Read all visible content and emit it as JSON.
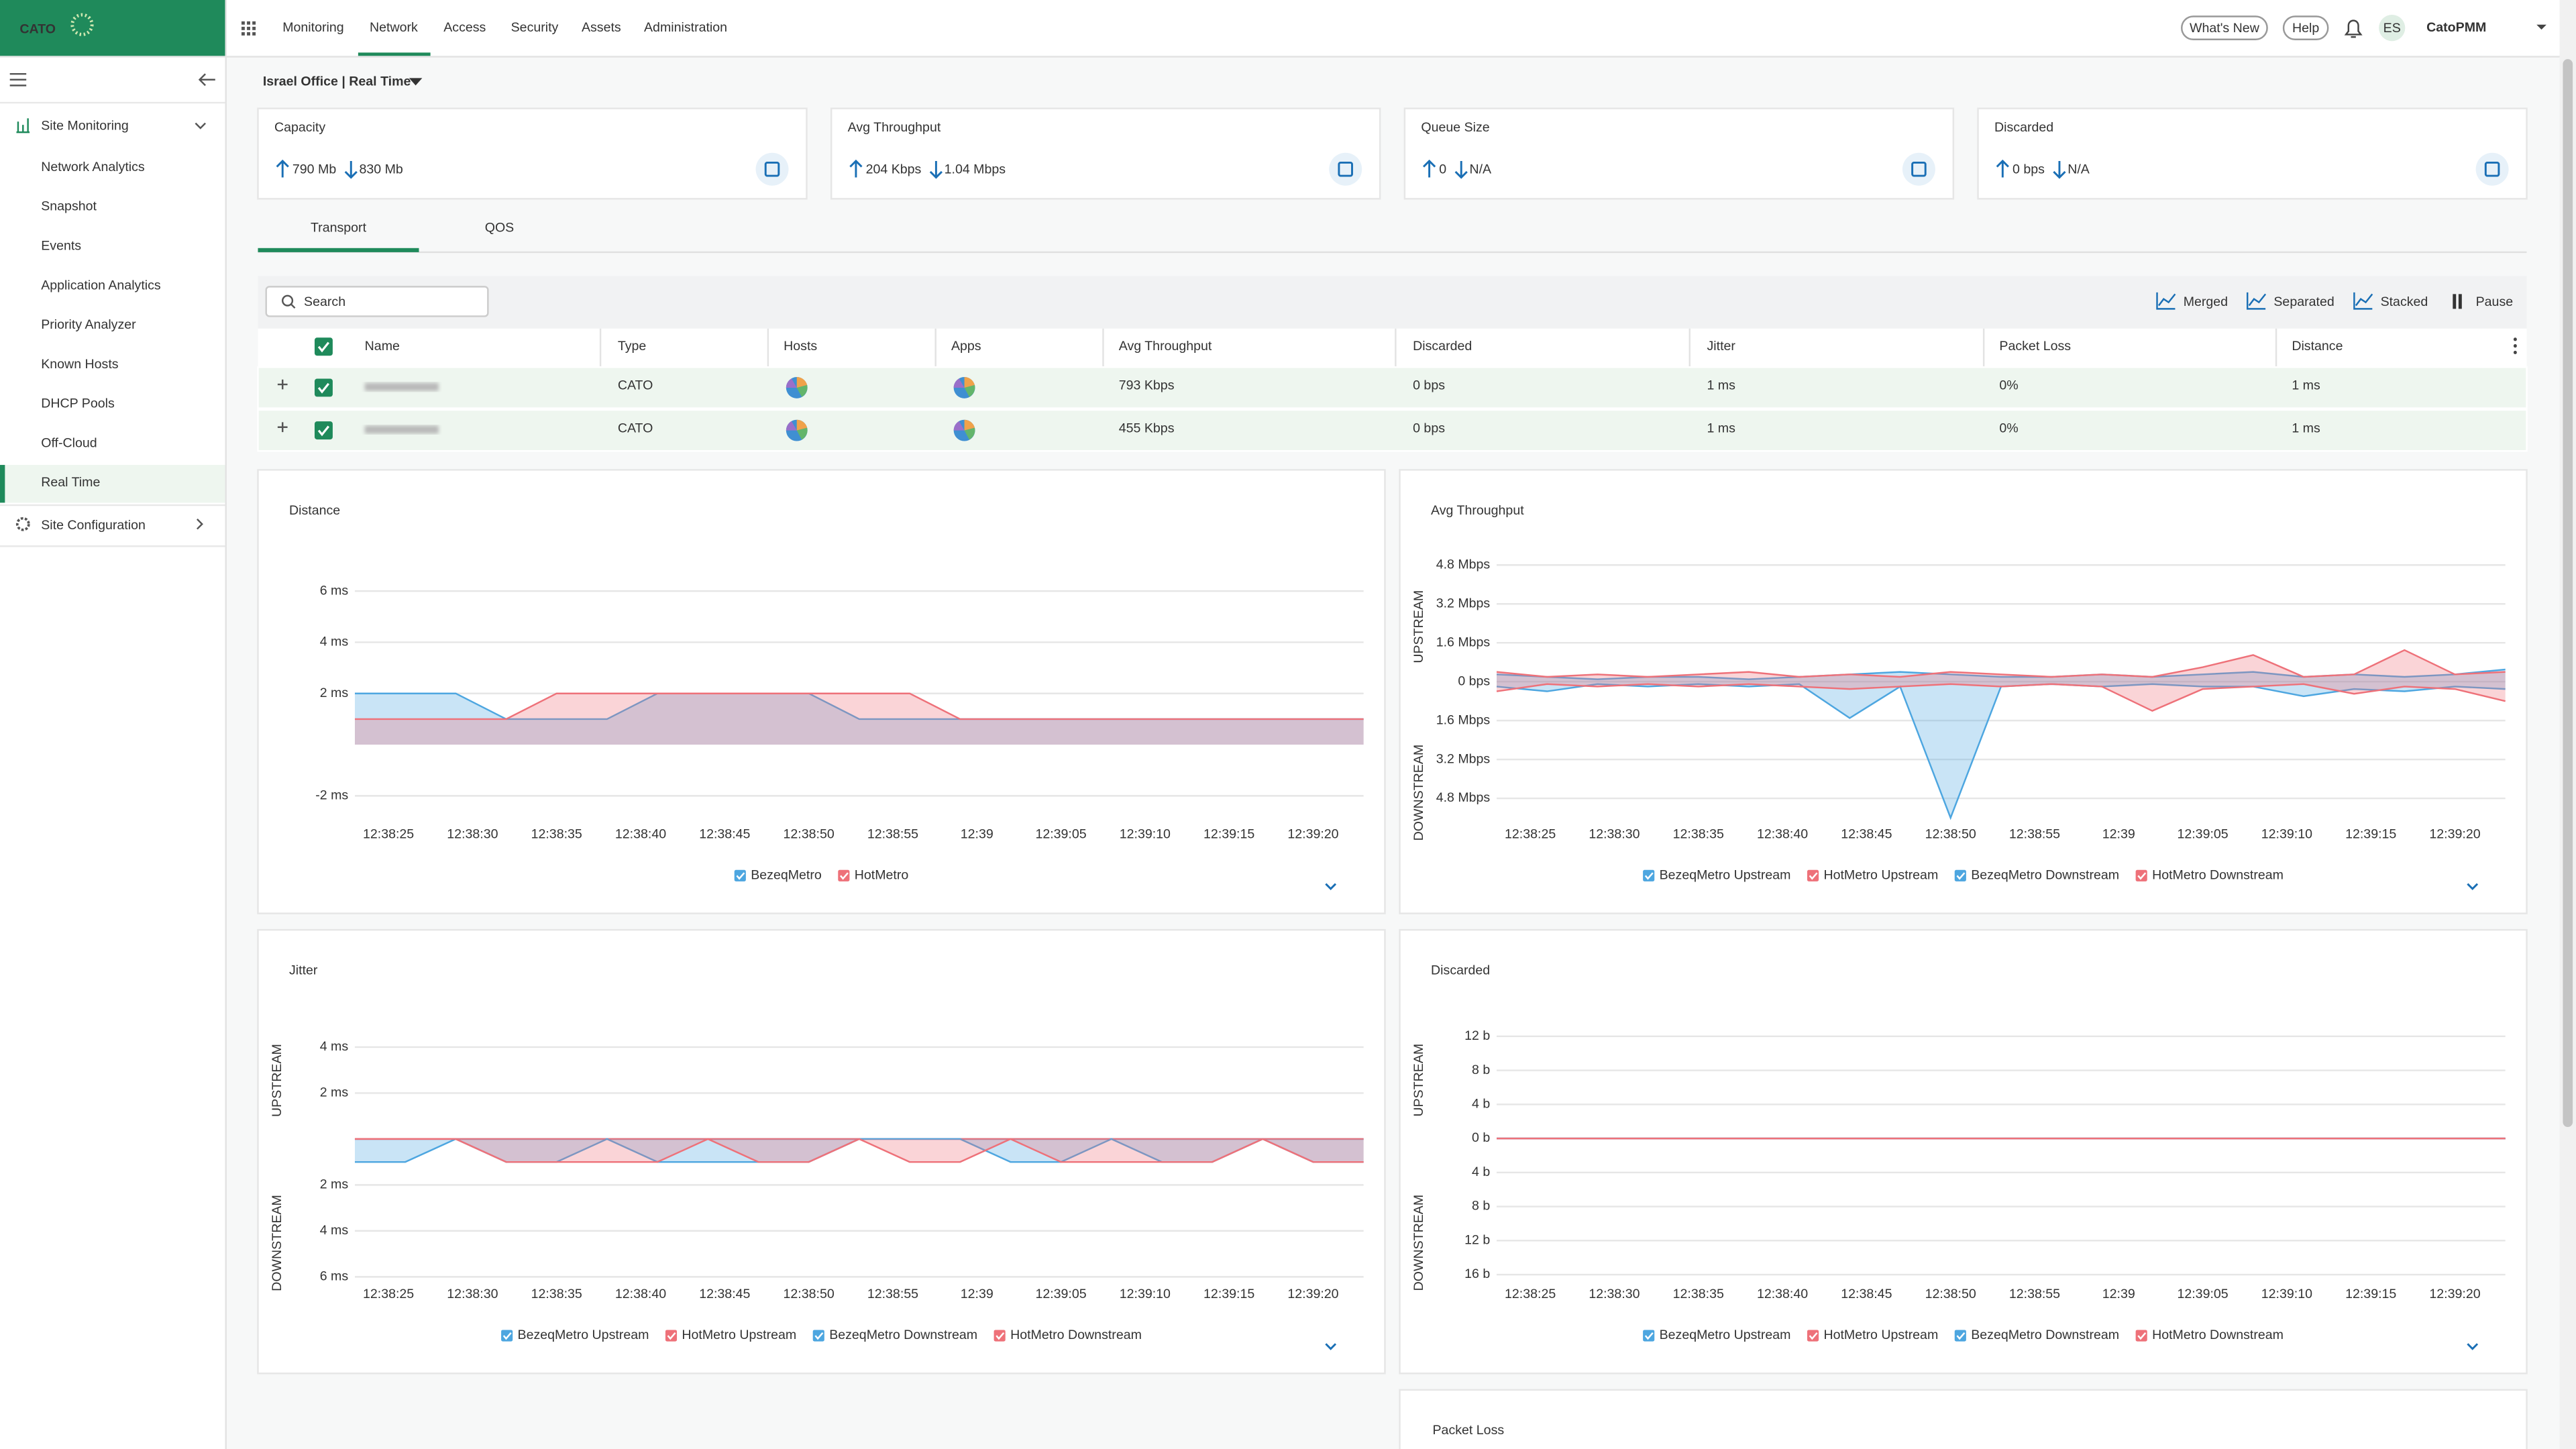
{
  "header": {
    "logo": "CATO",
    "nav": [
      "Monitoring",
      "Network",
      "Access",
      "Security",
      "Assets",
      "Administration"
    ],
    "buttons": [
      "What's New",
      "Help"
    ],
    "avatar": "ES",
    "user": "CatoPMM"
  },
  "sidebar": {
    "section": "Site Monitoring",
    "items": [
      "Network Analytics",
      "Snapshot",
      "Events",
      "Application Analytics",
      "Priority Analyzer",
      "Known Hosts",
      "DHCP Pools",
      "Off-Cloud",
      "Real Time"
    ],
    "section2": "Site Configuration"
  },
  "breadcrumb": "Israel Office | Real Time",
  "cards": [
    {
      "title": "Capacity",
      "up": "790 Mb",
      "down": "830 Mb"
    },
    {
      "title": "Avg Throughput",
      "up": "204 Kbps",
      "down": "1.04 Mbps"
    },
    {
      "title": "Queue Size",
      "up": "0",
      "down": "N/A"
    },
    {
      "title": "Discarded",
      "up": "0 bps",
      "down": "N/A"
    }
  ],
  "tabs": [
    "Transport",
    "QOS"
  ],
  "toolbar": {
    "search": "Search",
    "views": [
      "Merged",
      "Separated",
      "Stacked",
      "Pause"
    ]
  },
  "table": {
    "columns": [
      "Name",
      "Type",
      "Hosts",
      "Apps",
      "Avg Throughput",
      "Discarded",
      "Jitter",
      "Packet Loss",
      "Distance"
    ],
    "rows": [
      {
        "type": "CATO",
        "avg_throughput": "793 Kbps",
        "discarded": "0 bps",
        "jitter": "1 ms",
        "packet_loss": "0%",
        "distance": "1 ms"
      },
      {
        "type": "CATO",
        "avg_throughput": "455 Kbps",
        "discarded": "0 bps",
        "jitter": "1 ms",
        "packet_loss": "0%",
        "distance": "1 ms"
      }
    ]
  },
  "charts": [
    {
      "type": "area",
      "title": "Distance",
      "x": [
        "12:38:23",
        "12:38:26",
        "12:38:29",
        "12:38:32",
        "12:38:35",
        "12:38:38",
        "12:38:41",
        "12:38:44",
        "12:38:47",
        "12:38:50",
        "12:38:53",
        "12:38:56",
        "12:38:59",
        "12:39:02",
        "12:39:05",
        "12:39:08",
        "12:39:11",
        "12:39:14",
        "12:39:17",
        "12:39:20",
        "12:39:23"
      ],
      "xlim": [
        "12:38:23",
        "12:39:23"
      ],
      "xticks": [
        "12:38:25",
        "12:38:30",
        "12:38:35",
        "12:38:40",
        "12:38:45",
        "12:38:50",
        "12:38:55",
        "12:39",
        "12:39:05",
        "12:39:10",
        "12:39:15",
        "12:39:20"
      ],
      "ylim": [
        -3,
        7.4
      ],
      "yticks": [
        {
          "value": 6,
          "label": "6 ms"
        },
        {
          "value": 4,
          "label": "4 ms"
        },
        {
          "value": 2,
          "label": "2 ms"
        },
        {
          "value": -2,
          "label": "-2 ms"
        }
      ],
      "series": [
        {
          "name": "BezeqMetro",
          "color": "#4da6e0",
          "values": [
            2,
            2,
            2,
            1,
            1,
            1,
            2,
            2,
            2,
            2,
            1,
            1,
            1,
            1,
            1,
            1,
            1,
            1,
            1,
            1,
            1
          ]
        },
        {
          "name": "HotMetro",
          "color": "#ee7179",
          "values": [
            1,
            1,
            1,
            1,
            2,
            2,
            2,
            2,
            2,
            2,
            2,
            2,
            1,
            1,
            1,
            1,
            1,
            1,
            1,
            1,
            1
          ]
        }
      ]
    },
    {
      "type": "area",
      "title": "Avg Throughput",
      "upstream_label": "UPSTREAM",
      "downstream_label": "DOWNSTREAM",
      "x": [
        "12:38:23",
        "12:38:26",
        "12:38:29",
        "12:38:32",
        "12:38:35",
        "12:38:38",
        "12:38:41",
        "12:38:44",
        "12:38:47",
        "12:38:50",
        "12:38:53",
        "12:38:56",
        "12:38:59",
        "12:39:02",
        "12:39:05",
        "12:39:08",
        "12:39:11",
        "12:39:14",
        "12:39:17",
        "12:39:20",
        "12:39:23"
      ],
      "xlim": [
        "12:38:23",
        "12:39:23"
      ],
      "xticks": [
        "12:38:25",
        "12:38:30",
        "12:38:35",
        "12:38:40",
        "12:38:45",
        "12:38:50",
        "12:38:55",
        "12:39",
        "12:39:05",
        "12:39:10",
        "12:39:15",
        "12:39:20"
      ],
      "ylim": [
        -5.75,
        5.2
      ],
      "yticks": [
        {
          "value": 4.8,
          "label": "4.8 Mbps"
        },
        {
          "value": 3.2,
          "label": "3.2 Mbps"
        },
        {
          "value": 1.6,
          "label": "1.6 Mbps"
        },
        {
          "value": 0,
          "label": "0 bps"
        },
        {
          "value": -1.6,
          "label": "1.6 Mbps"
        },
        {
          "value": -3.2,
          "label": "3.2 Mbps"
        },
        {
          "value": -4.8,
          "label": "4.8 Mbps"
        }
      ],
      "series": [
        {
          "name": "BezeqMetro Upstream",
          "color": "#4da6e0",
          "values": [
            0.3,
            0.2,
            0.1,
            0.2,
            0.2,
            0.1,
            0.2,
            0.3,
            0.4,
            0.3,
            0.2,
            0.2,
            0.3,
            0.2,
            0.3,
            0.4,
            0.2,
            0.3,
            0.2,
            0.3,
            0.5
          ]
        },
        {
          "name": "HotMetro Upstream",
          "color": "#ee7179",
          "values": [
            0.4,
            0.2,
            0.3,
            0.2,
            0.3,
            0.4,
            0.2,
            0.3,
            0.2,
            0.4,
            0.3,
            0.2,
            0.3,
            0.2,
            0.6,
            1.1,
            0.2,
            0.3,
            1.3,
            0.3,
            0.4
          ]
        },
        {
          "name": "BezeqMetro Downstream",
          "color": "#4da6e0",
          "values": [
            -0.2,
            -0.4,
            -0.1,
            -0.2,
            -0.1,
            -0.2,
            -0.1,
            -1.5,
            -0.2,
            -5.6,
            -0.2,
            -0.1,
            -0.2,
            -0.1,
            -0.2,
            -0.2,
            -0.6,
            -0.3,
            -0.4,
            -0.2,
            -0.3
          ]
        },
        {
          "name": "HotMetro Downstream",
          "color": "#ee7179",
          "values": [
            -0.4,
            -0.1,
            -0.2,
            -0.1,
            -0.2,
            -0.1,
            -0.2,
            -0.3,
            -0.2,
            -0.1,
            -0.2,
            -0.1,
            -0.2,
            -1.2,
            -0.3,
            -0.2,
            -0.1,
            -0.5,
            -0.2,
            -0.3,
            -0.8
          ]
        }
      ]
    },
    {
      "type": "area",
      "title": "Jitter",
      "upstream_label": "UPSTREAM",
      "downstream_label": "DOWNSTREAM",
      "x": [
        "12:38:23",
        "12:38:26",
        "12:38:29",
        "12:38:32",
        "12:38:35",
        "12:38:38",
        "12:38:41",
        "12:38:44",
        "12:38:47",
        "12:38:50",
        "12:38:53",
        "12:38:56",
        "12:38:59",
        "12:39:02",
        "12:39:05",
        "12:39:08",
        "12:39:11",
        "12:39:14",
        "12:39:17",
        "12:39:20",
        "12:39:23"
      ],
      "xlim": [
        "12:38:23",
        "12:39:23"
      ],
      "xticks": [
        "12:38:25",
        "12:38:30",
        "12:38:35",
        "12:38:40",
        "12:38:45",
        "12:38:50",
        "12:38:55",
        "12:39",
        "12:39:05",
        "12:39:10",
        "12:39:15",
        "12:39:20"
      ],
      "ylim": [
        -6.2,
        5.1
      ],
      "yticks": [
        {
          "value": 4,
          "label": "4 ms"
        },
        {
          "value": 2,
          "label": "2 ms"
        },
        {
          "value": -2,
          "label": "2 ms"
        },
        {
          "value": -4,
          "label": "4 ms"
        },
        {
          "value": -6,
          "label": "6 ms"
        }
      ],
      "series": [
        {
          "name": "BezeqMetro Upstream",
          "color": "#4da6e0",
          "values": [
            0,
            0,
            0,
            0,
            0,
            0,
            0,
            0,
            0,
            0,
            0,
            0,
            0,
            0,
            0,
            0,
            0,
            0,
            0,
            0,
            0
          ]
        },
        {
          "name": "HotMetro Upstream",
          "color": "#ee7179",
          "values": [
            0,
            0,
            0,
            0,
            0,
            0,
            0,
            0,
            0,
            0,
            0,
            0,
            0,
            0,
            0,
            0,
            0,
            0,
            0,
            0,
            0
          ]
        },
        {
          "name": "BezeqMetro Downstream",
          "color": "#4da6e0",
          "values": [
            -1,
            -1,
            0,
            -1,
            -1,
            0,
            -1,
            -1,
            -1,
            -1,
            0,
            0,
            0,
            -1,
            -1,
            0,
            -1,
            -1,
            0,
            -1,
            -1
          ]
        },
        {
          "name": "HotMetro Downstream",
          "color": "#ee7179",
          "values": [
            0,
            0,
            0,
            -1,
            -1,
            -1,
            -1,
            0,
            -1,
            -1,
            0,
            -1,
            -1,
            0,
            -1,
            -1,
            -1,
            -1,
            0,
            -1,
            -1
          ]
        }
      ]
    },
    {
      "type": "area",
      "title": "Discarded",
      "upstream_label": "UPSTREAM",
      "downstream_label": "DOWNSTREAM",
      "x": [
        "12:38:23",
        "12:38:26",
        "12:38:29",
        "12:38:32",
        "12:38:35",
        "12:38:38",
        "12:38:41",
        "12:38:44",
        "12:38:47",
        "12:38:50",
        "12:38:53",
        "12:38:56",
        "12:38:59",
        "12:39:02",
        "12:39:05",
        "12:39:08",
        "12:39:11",
        "12:39:14",
        "12:39:17",
        "12:39:20",
        "12:39:23"
      ],
      "xlim": [
        "12:38:23",
        "12:39:23"
      ],
      "xticks": [
        "12:38:25",
        "12:38:30",
        "12:38:35",
        "12:38:40",
        "12:38:45",
        "12:38:50",
        "12:38:55",
        "12:39",
        "12:39:05",
        "12:39:10",
        "12:39:15",
        "12:39:20"
      ],
      "ylim": [
        -16.8,
        13.7
      ],
      "yticks": [
        {
          "value": 12,
          "label": "12 b"
        },
        {
          "value": 8,
          "label": "8 b"
        },
        {
          "value": 4,
          "label": "4 b"
        },
        {
          "value": 0,
          "label": "0 b"
        },
        {
          "value": -4,
          "label": "4 b"
        },
        {
          "value": -8,
          "label": "8 b"
        },
        {
          "value": -12,
          "label": "12 b"
        },
        {
          "value": -16,
          "label": "16 b"
        }
      ],
      "series": [
        {
          "name": "BezeqMetro Upstream",
          "color": "#4da6e0",
          "values": [
            0,
            0,
            0,
            0,
            0,
            0,
            0,
            0,
            0,
            0,
            0,
            0,
            0,
            0,
            0,
            0,
            0,
            0,
            0,
            0,
            0
          ]
        },
        {
          "name": "HotMetro Upstream",
          "color": "#ee7179",
          "values": [
            0,
            0,
            0,
            0,
            0,
            0,
            0,
            0,
            0,
            0,
            0,
            0,
            0,
            0,
            0,
            0,
            0,
            0,
            0,
            0,
            0
          ]
        },
        {
          "name": "BezeqMetro Downstream",
          "color": "#4da6e0",
          "values": [
            0,
            0,
            0,
            0,
            0,
            0,
            0,
            0,
            0,
            0,
            0,
            0,
            0,
            0,
            0,
            0,
            0,
            0,
            0,
            0,
            0
          ]
        },
        {
          "name": "HotMetro Downstream",
          "color": "#ee7179",
          "values": [
            0,
            0,
            0,
            0,
            0,
            0,
            0,
            0,
            0,
            0,
            0,
            0,
            0,
            0,
            0,
            0,
            0,
            0,
            0,
            0,
            0
          ]
        }
      ]
    }
  ],
  "packet_loss_title": "Packet Loss"
}
